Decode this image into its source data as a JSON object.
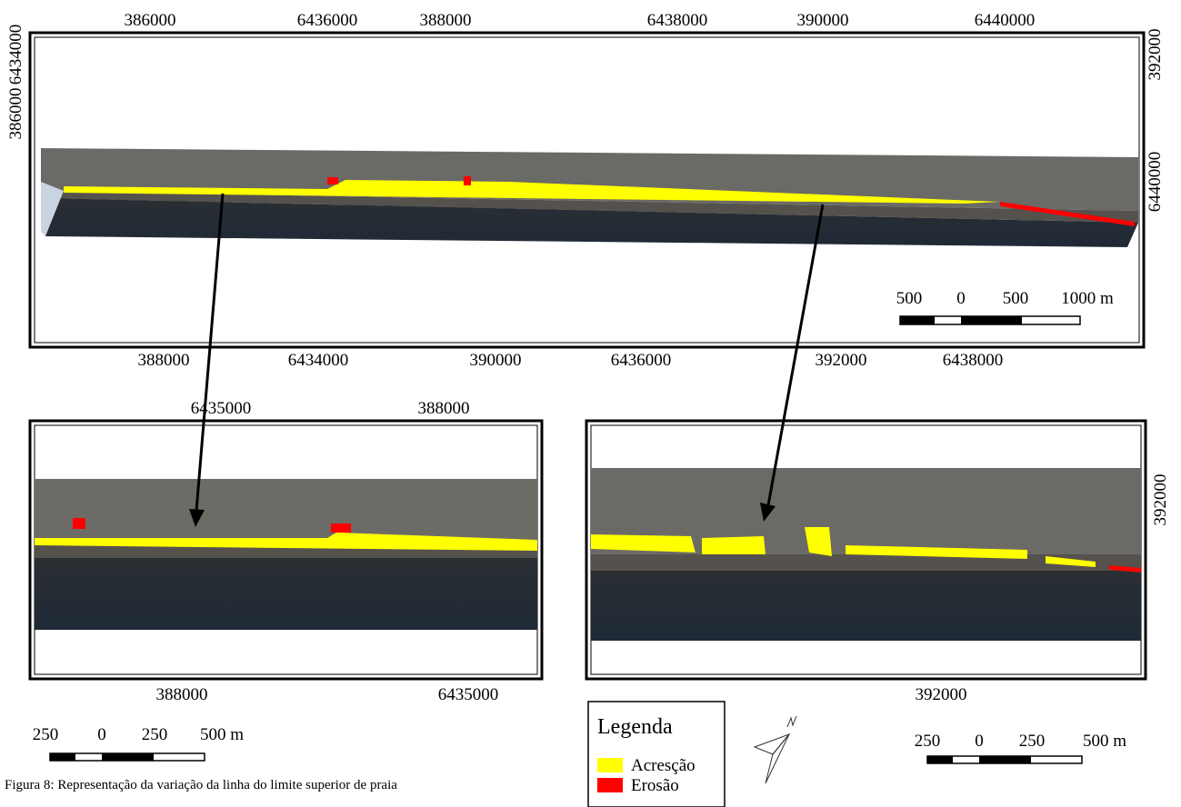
{
  "maps": [
    {
      "top_labels": [
        "386000",
        "6436000",
        "388000",
        "6438000",
        "390000",
        "6440000"
      ],
      "left_labels": [
        "6434000",
        "386000"
      ],
      "right_labels": [
        "392000",
        "6440000"
      ],
      "bottom_labels": [
        "388000",
        "6434000",
        "390000",
        "6436000",
        "392000",
        "6438000"
      ],
      "scale_labels": [
        "500",
        "0",
        "500",
        "1000 m"
      ]
    },
    {
      "top_labels": [
        "6435000",
        "388000"
      ],
      "bottom_labels": [
        "388000",
        "6435000"
      ],
      "scale_labels": [
        "250",
        "0",
        "250",
        "500 m"
      ]
    },
    {
      "right_labels": [
        "392000"
      ],
      "bottom_labels": [
        "392000"
      ],
      "scale_labels": [
        "250",
        "0",
        "250",
        "500 m"
      ]
    }
  ],
  "legend": {
    "title": "Legenda",
    "items": [
      {
        "label": "Acresção",
        "color": "#ffff00"
      },
      {
        "label": "Erosão",
        "color": "#ff0000"
      }
    ]
  },
  "caption": "Figura 8: Representação da variação da linha do limite superior de praia"
}
